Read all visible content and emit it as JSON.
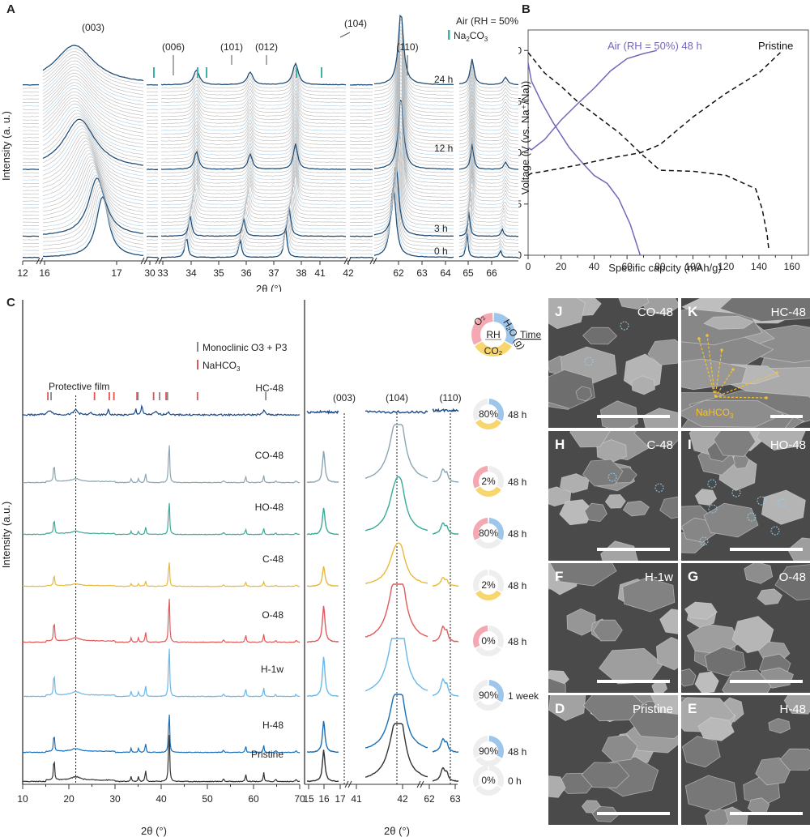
{
  "chart_data": [
    {
      "panel": "A",
      "type": "line",
      "title": "",
      "xlabel": "2θ (°)",
      "ylabel": "Intensity (a. u.)",
      "x_break_segments": [
        {
          "range": [
            12,
            16
          ],
          "ticks": [
            12,
            16
          ]
        },
        {
          "range": [
            16,
            17
          ],
          "ticks": [
            17
          ]
        },
        {
          "range": [
            30,
            30
          ],
          "ticks": [
            30
          ]
        },
        {
          "range": [
            33,
            38
          ],
          "ticks": [
            33,
            34,
            35,
            36,
            37,
            38
          ]
        },
        {
          "range": [
            41,
            42
          ],
          "ticks": [
            41,
            42
          ]
        },
        {
          "range": [
            62,
            66
          ],
          "ticks": [
            62,
            63,
            64,
            65,
            66
          ]
        }
      ],
      "x_tick_labels": [
        "12",
        "16",
        "17",
        "30",
        "33",
        "34",
        "35",
        "36",
        "37",
        "38",
        "41",
        "42",
        "62",
        "63",
        "64",
        "65",
        "66"
      ],
      "legend": {
        "condition": "Air (RH = 50%)",
        "marker_label": "Na2CO3",
        "marker_color": "#3bb3a6"
      },
      "peak_labels": [
        "(003)",
        "(006)",
        "(101)",
        "(012)",
        "(104)",
        "(110)"
      ],
      "time_labels": [
        "24 h",
        "12 h",
        "3 h",
        "0 h"
      ],
      "highlight_color": "#1f4e79",
      "background_trace_color": "#b8b8b8",
      "series_count_approx": 50
    },
    {
      "panel": "B",
      "type": "line",
      "xlabel": "Specific capcity (mAh/g)",
      "ylabel": "Voltage (V (vs. Na⁺/Na))",
      "xlim": [
        0,
        170
      ],
      "ylim": [
        2.0,
        4.2
      ],
      "x_ticks": [
        0,
        20,
        40,
        60,
        80,
        100,
        120,
        140,
        160
      ],
      "y_ticks": [
        2.0,
        2.5,
        3.0,
        3.5,
        4.0
      ],
      "series": [
        {
          "name": "Air (RH = 50%) 48 h",
          "color": "#7467b8",
          "style": "solid",
          "charge": {
            "x": [
              0,
              2,
              10,
              20,
              30,
              40,
              50,
              60,
              70,
              78
            ],
            "y": [
              3.05,
              3.03,
              3.13,
              3.32,
              3.48,
              3.63,
              3.8,
              3.92,
              3.97,
              4.0
            ]
          },
          "discharge": {
            "x": [
              0,
              2,
              8,
              15,
              25,
              33,
              40,
              48,
              55,
              62,
              68
            ],
            "y": [
              3.88,
              3.7,
              3.5,
              3.3,
              3.05,
              2.9,
              2.78,
              2.7,
              2.55,
              2.3,
              2.0
            ]
          }
        },
        {
          "name": "Pristine",
          "color": "#111111",
          "style": "dashed",
          "charge": {
            "x": [
              0,
              2,
              10,
              30,
              50,
              68,
              80,
              100,
              120,
              140,
              153
            ],
            "y": [
              2.78,
              2.8,
              2.82,
              2.88,
              2.95,
              3.0,
              3.08,
              3.35,
              3.58,
              3.78,
              3.98
            ]
          },
          "discharge": {
            "x": [
              0,
              10,
              20,
              30,
              40,
              55,
              70,
              80,
              100,
              120,
              138,
              142,
              145,
              146
            ],
            "y": [
              3.98,
              3.78,
              3.65,
              3.5,
              3.38,
              3.2,
              2.97,
              2.83,
              2.82,
              2.78,
              2.65,
              2.45,
              2.2,
              2.05
            ]
          }
        }
      ]
    },
    {
      "panel": "C",
      "type": "line",
      "xlabel": "2θ (°)",
      "ylabel": "Intensity (a.u.)",
      "left": {
        "xlim": [
          10,
          70
        ],
        "x_ticks": [
          10,
          20,
          30,
          40,
          50,
          60,
          70
        ]
      },
      "right": {
        "x_tick_labels": [
          "15",
          "16",
          "17",
          "41",
          "42",
          "62",
          "63"
        ],
        "peak_labels": [
          "(003)",
          "(104)",
          "(110)"
        ],
        "dashed_positions": [
          16.8,
          41.7,
          62.2
        ]
      },
      "protective_film_label": "Protective film",
      "protective_film_position": 21.5,
      "legend": [
        {
          "label": "Monoclinic O3 + P3",
          "color": "#888888"
        },
        {
          "label": "NaHCO3",
          "color": "#e05555"
        }
      ],
      "reference_ticks": {
        "monoclinic": [
          16.0,
          34.8,
          39.5,
          41.2,
          62.5
        ],
        "nahco3": [
          15.3,
          25.4,
          28.6,
          29.6,
          34.6,
          38.2,
          40.9,
          47.7
        ]
      },
      "peaks_pristine": [
        16.8,
        33.5,
        35.1,
        36.6,
        41.7,
        53.5,
        58.3,
        62.2,
        64.8,
        69.2
      ],
      "samples": [
        {
          "name": "HC-48",
          "color": "#1a4a8a",
          "rh": "80%",
          "time": "48 h",
          "gases": {
            "O2": false,
            "H2O": true,
            "CO2": true
          }
        },
        {
          "name": "CO-48",
          "color": "#8aa6b4",
          "rh": "2%",
          "time": "48 h",
          "gases": {
            "O2": true,
            "H2O": false,
            "CO2": true
          }
        },
        {
          "name": "HO-48",
          "color": "#3aaa9a",
          "rh": "80%",
          "time": "48 h",
          "gases": {
            "O2": true,
            "H2O": true,
            "CO2": false
          }
        },
        {
          "name": "C-48",
          "color": "#e8b83a",
          "rh": "2%",
          "time": "48 h",
          "gases": {
            "O2": false,
            "H2O": false,
            "CO2": true
          }
        },
        {
          "name": "O-48",
          "color": "#e05a5a",
          "rh": "0%",
          "time": "48 h",
          "gases": {
            "O2": true,
            "H2O": false,
            "CO2": false
          }
        },
        {
          "name": "H-1w",
          "color": "#6ab8e8",
          "rh": "90%",
          "time": "1 week",
          "gases": {
            "O2": false,
            "H2O": true,
            "CO2": false
          }
        },
        {
          "name": "H-48",
          "color": "#1b6eb5",
          "rh": "90%",
          "time": "48 h",
          "gases": {
            "O2": false,
            "H2O": true,
            "CO2": false
          }
        },
        {
          "name": "Pristine",
          "color": "#333333",
          "rh": "0%",
          "time": "0 h",
          "gases": {
            "O2": false,
            "H2O": false,
            "CO2": false
          }
        }
      ],
      "donut_key": {
        "center": "RH",
        "side": "Time",
        "segments": [
          "O2",
          "H2O (g)",
          "CO2"
        ],
        "colors": {
          "O2": "#f4a9b2",
          "H2O": "#9ec6ea",
          "CO2": "#f8d66e",
          "off": "#eeeeee"
        }
      }
    }
  ],
  "sem_panels": [
    {
      "letter": "J",
      "label": "CO-48",
      "annotation": ""
    },
    {
      "letter": "K",
      "label": "HC-48",
      "annotation": "NaHCO3"
    },
    {
      "letter": "H",
      "label": "C-48",
      "annotation": ""
    },
    {
      "letter": "I",
      "label": "HO-48",
      "annotation": ""
    },
    {
      "letter": "F",
      "label": "H-1w",
      "annotation": ""
    },
    {
      "letter": "G",
      "label": "O-48",
      "annotation": ""
    },
    {
      "letter": "D",
      "label": "Pristine",
      "annotation": ""
    },
    {
      "letter": "E",
      "label": "H-48",
      "annotation": ""
    }
  ],
  "panel_letters": {
    "a": "A",
    "b": "B",
    "c": "C"
  }
}
